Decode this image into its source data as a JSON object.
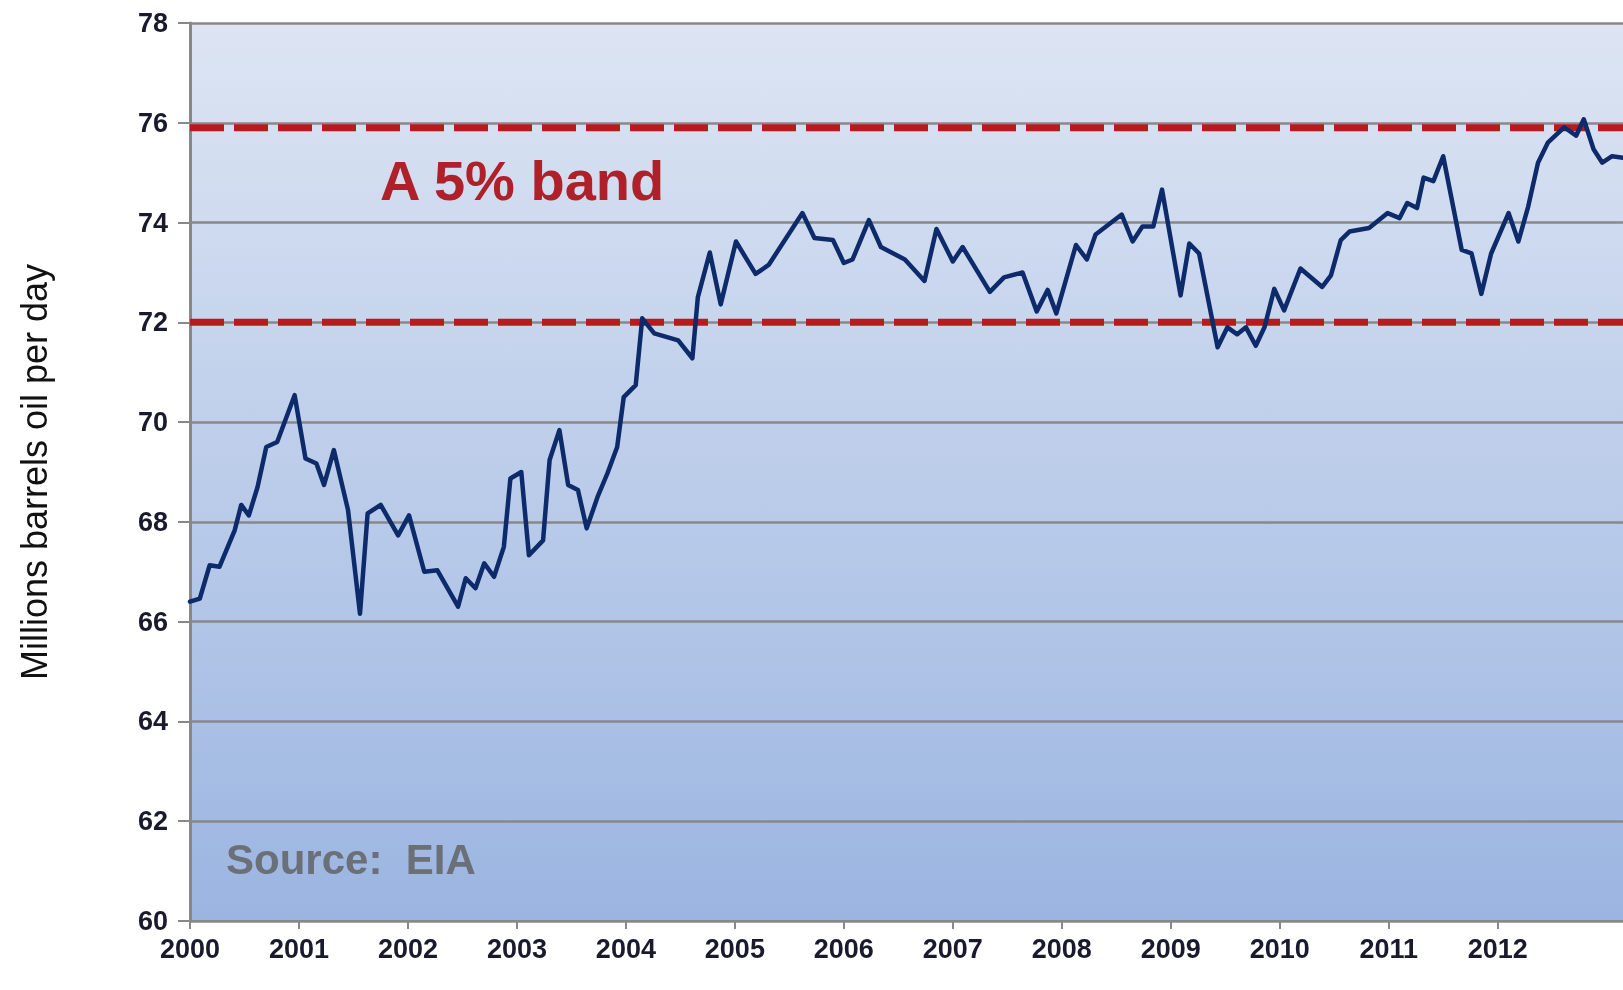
{
  "chart_data": {
    "type": "line",
    "ylabel": "Millions barrels oil per day",
    "xlim": [
      2000,
      2013.15
    ],
    "xticks": [
      2000,
      2001,
      2002,
      2003,
      2004,
      2005,
      2006,
      2007,
      2008,
      2009,
      2010,
      2011,
      2012
    ],
    "ylim": [
      60,
      78
    ],
    "yticks": [
      60,
      62,
      64,
      66,
      68,
      70,
      72,
      74,
      76,
      78
    ],
    "grid": "y",
    "marker": "none",
    "line_style": "solid",
    "series": [
      {
        "color": "#0d2a6b",
        "x": [
          2000.0,
          2000.09,
          2000.18,
          2000.27,
          2000.41,
          2000.47,
          2000.54,
          2000.62,
          2000.7,
          2000.8,
          2000.96,
          2001.06,
          2001.16,
          2001.23,
          2001.32,
          2001.45,
          2001.56,
          2001.63,
          2001.75,
          2001.91,
          2002.01,
          2002.15,
          2002.27,
          2002.46,
          2002.53,
          2002.62,
          2002.7,
          2002.79,
          2002.88,
          2002.94,
          2003.04,
          2003.11,
          2003.24,
          2003.3,
          2003.39,
          2003.47,
          2003.56,
          2003.64,
          2003.74,
          2003.83,
          2003.92,
          2003.98,
          2004.09,
          2004.15,
          2004.26,
          2004.48,
          2004.61,
          2004.66,
          2004.77,
          2004.87,
          2005.01,
          2005.19,
          2005.31,
          2005.62,
          2005.73,
          2005.9,
          2006.0,
          2006.08,
          2006.23,
          2006.34,
          2006.56,
          2006.74,
          2006.85,
          2007.0,
          2007.09,
          2007.34,
          2007.47,
          2007.64,
          2007.77,
          2007.87,
          2007.95,
          2008.13,
          2008.23,
          2008.31,
          2008.55,
          2008.65,
          2008.74,
          2008.84,
          2008.92,
          2009.09,
          2009.17,
          2009.26,
          2009.43,
          2009.52,
          2009.61,
          2009.69,
          2009.78,
          2009.86,
          2009.95,
          2010.04,
          2010.19,
          2010.39,
          2010.47,
          2010.56,
          2010.64,
          2010.82,
          2010.99,
          2011.1,
          2011.17,
          2011.26,
          2011.32,
          2011.41,
          2011.5,
          2011.67,
          2011.76,
          2011.85,
          2011.94,
          2012.1,
          2012.19,
          2012.28,
          2012.37,
          2012.46,
          2012.61,
          2012.72,
          2012.79,
          2012.88,
          2012.96,
          2013.05,
          2013.15
        ],
        "values": [
          66.4,
          66.46,
          67.13,
          67.1,
          67.83,
          68.34,
          68.13,
          68.7,
          69.5,
          69.6,
          70.54,
          69.27,
          69.17,
          68.74,
          69.44,
          68.24,
          66.16,
          68.17,
          68.34,
          67.73,
          68.13,
          67.0,
          67.03,
          66.3,
          66.87,
          66.67,
          67.17,
          66.9,
          67.5,
          68.87,
          69.0,
          67.33,
          67.63,
          69.24,
          69.84,
          68.74,
          68.64,
          67.87,
          68.5,
          68.97,
          69.5,
          70.5,
          70.74,
          72.08,
          71.78,
          71.64,
          71.28,
          72.5,
          73.4,
          72.36,
          73.62,
          72.97,
          73.15,
          74.19,
          73.69,
          73.65,
          73.19,
          73.26,
          74.05,
          73.51,
          73.26,
          72.83,
          73.87,
          73.22,
          73.51,
          72.61,
          72.9,
          73.0,
          72.22,
          72.65,
          72.18,
          73.55,
          73.26,
          73.76,
          74.16,
          73.62,
          73.92,
          73.92,
          74.66,
          72.54,
          73.58,
          73.38,
          71.5,
          71.9,
          71.76,
          71.9,
          71.53,
          71.9,
          72.67,
          72.24,
          73.08,
          72.71,
          72.94,
          73.65,
          73.82,
          73.89,
          74.19,
          74.09,
          74.39,
          74.29,
          74.9,
          74.83,
          75.33,
          73.45,
          73.38,
          72.57,
          73.38,
          74.19,
          73.62,
          74.32,
          75.2,
          75.6,
          75.91,
          75.74,
          76.07,
          75.47,
          75.2,
          75.33,
          75.3
        ]
      }
    ],
    "ref_lines": [
      {
        "axis": "y",
        "value": 75.9,
        "color": "#b71c1c",
        "line_style": "dashed"
      },
      {
        "axis": "y",
        "value": 72,
        "color": "#b71c1c",
        "line_style": "dashed"
      }
    ],
    "annotations": [
      "A 5% band",
      "Source:  EIA"
    ]
  }
}
